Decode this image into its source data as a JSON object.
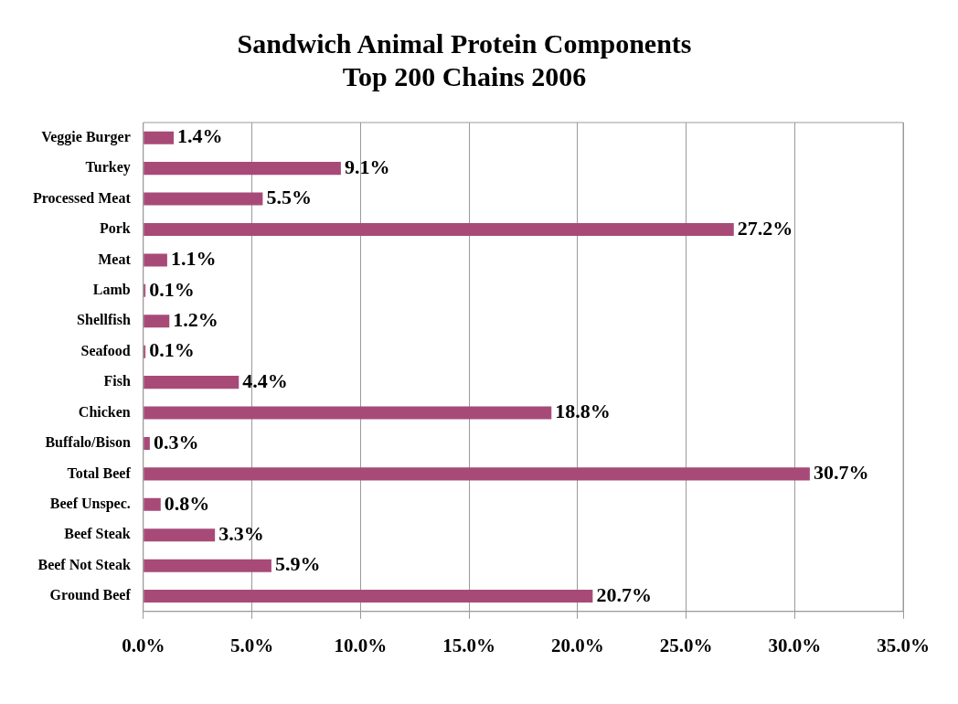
{
  "chart_data": {
    "type": "bar",
    "orientation": "horizontal",
    "title": "Sandwich Animal Protein Components\nTop 200 Chains 2006",
    "categories": [
      "Veggie Burger",
      "Turkey",
      "Processed Meat",
      "Pork",
      "Meat",
      "Lamb",
      "Shellfish",
      "Seafood",
      "Fish",
      "Chicken",
      "Buffalo/Bison",
      "Total Beef",
      "Beef Unspec.",
      "Beef Steak",
      "Beef Not Steak",
      "Ground Beef"
    ],
    "values": [
      1.4,
      9.1,
      5.5,
      27.2,
      1.1,
      0.1,
      1.2,
      0.1,
      4.4,
      18.8,
      0.3,
      30.7,
      0.8,
      3.3,
      5.9,
      20.7
    ],
    "value_labels": [
      "1.4%",
      "9.1%",
      "5.5%",
      "27.2%",
      "1.1%",
      "0.1%",
      "1.2%",
      "0.1%",
      "4.4%",
      "18.8%",
      "0.3%",
      "30.7%",
      "0.8%",
      "3.3%",
      "5.9%",
      "20.7%"
    ],
    "color": "#a84a78",
    "xlim": [
      0,
      35
    ],
    "xticks": [
      {
        "value": 0,
        "label": "0.0%"
      },
      {
        "value": 5,
        "label": "5.0%"
      },
      {
        "value": 10,
        "label": "10.0%"
      },
      {
        "value": 15,
        "label": "15.0%"
      },
      {
        "value": 20,
        "label": "20.0%"
      },
      {
        "value": 25,
        "label": "25.0%"
      },
      {
        "value": 30,
        "label": "30.0%"
      },
      {
        "value": 35,
        "label": "35.0%"
      }
    ],
    "grid": "x",
    "legend": false
  }
}
